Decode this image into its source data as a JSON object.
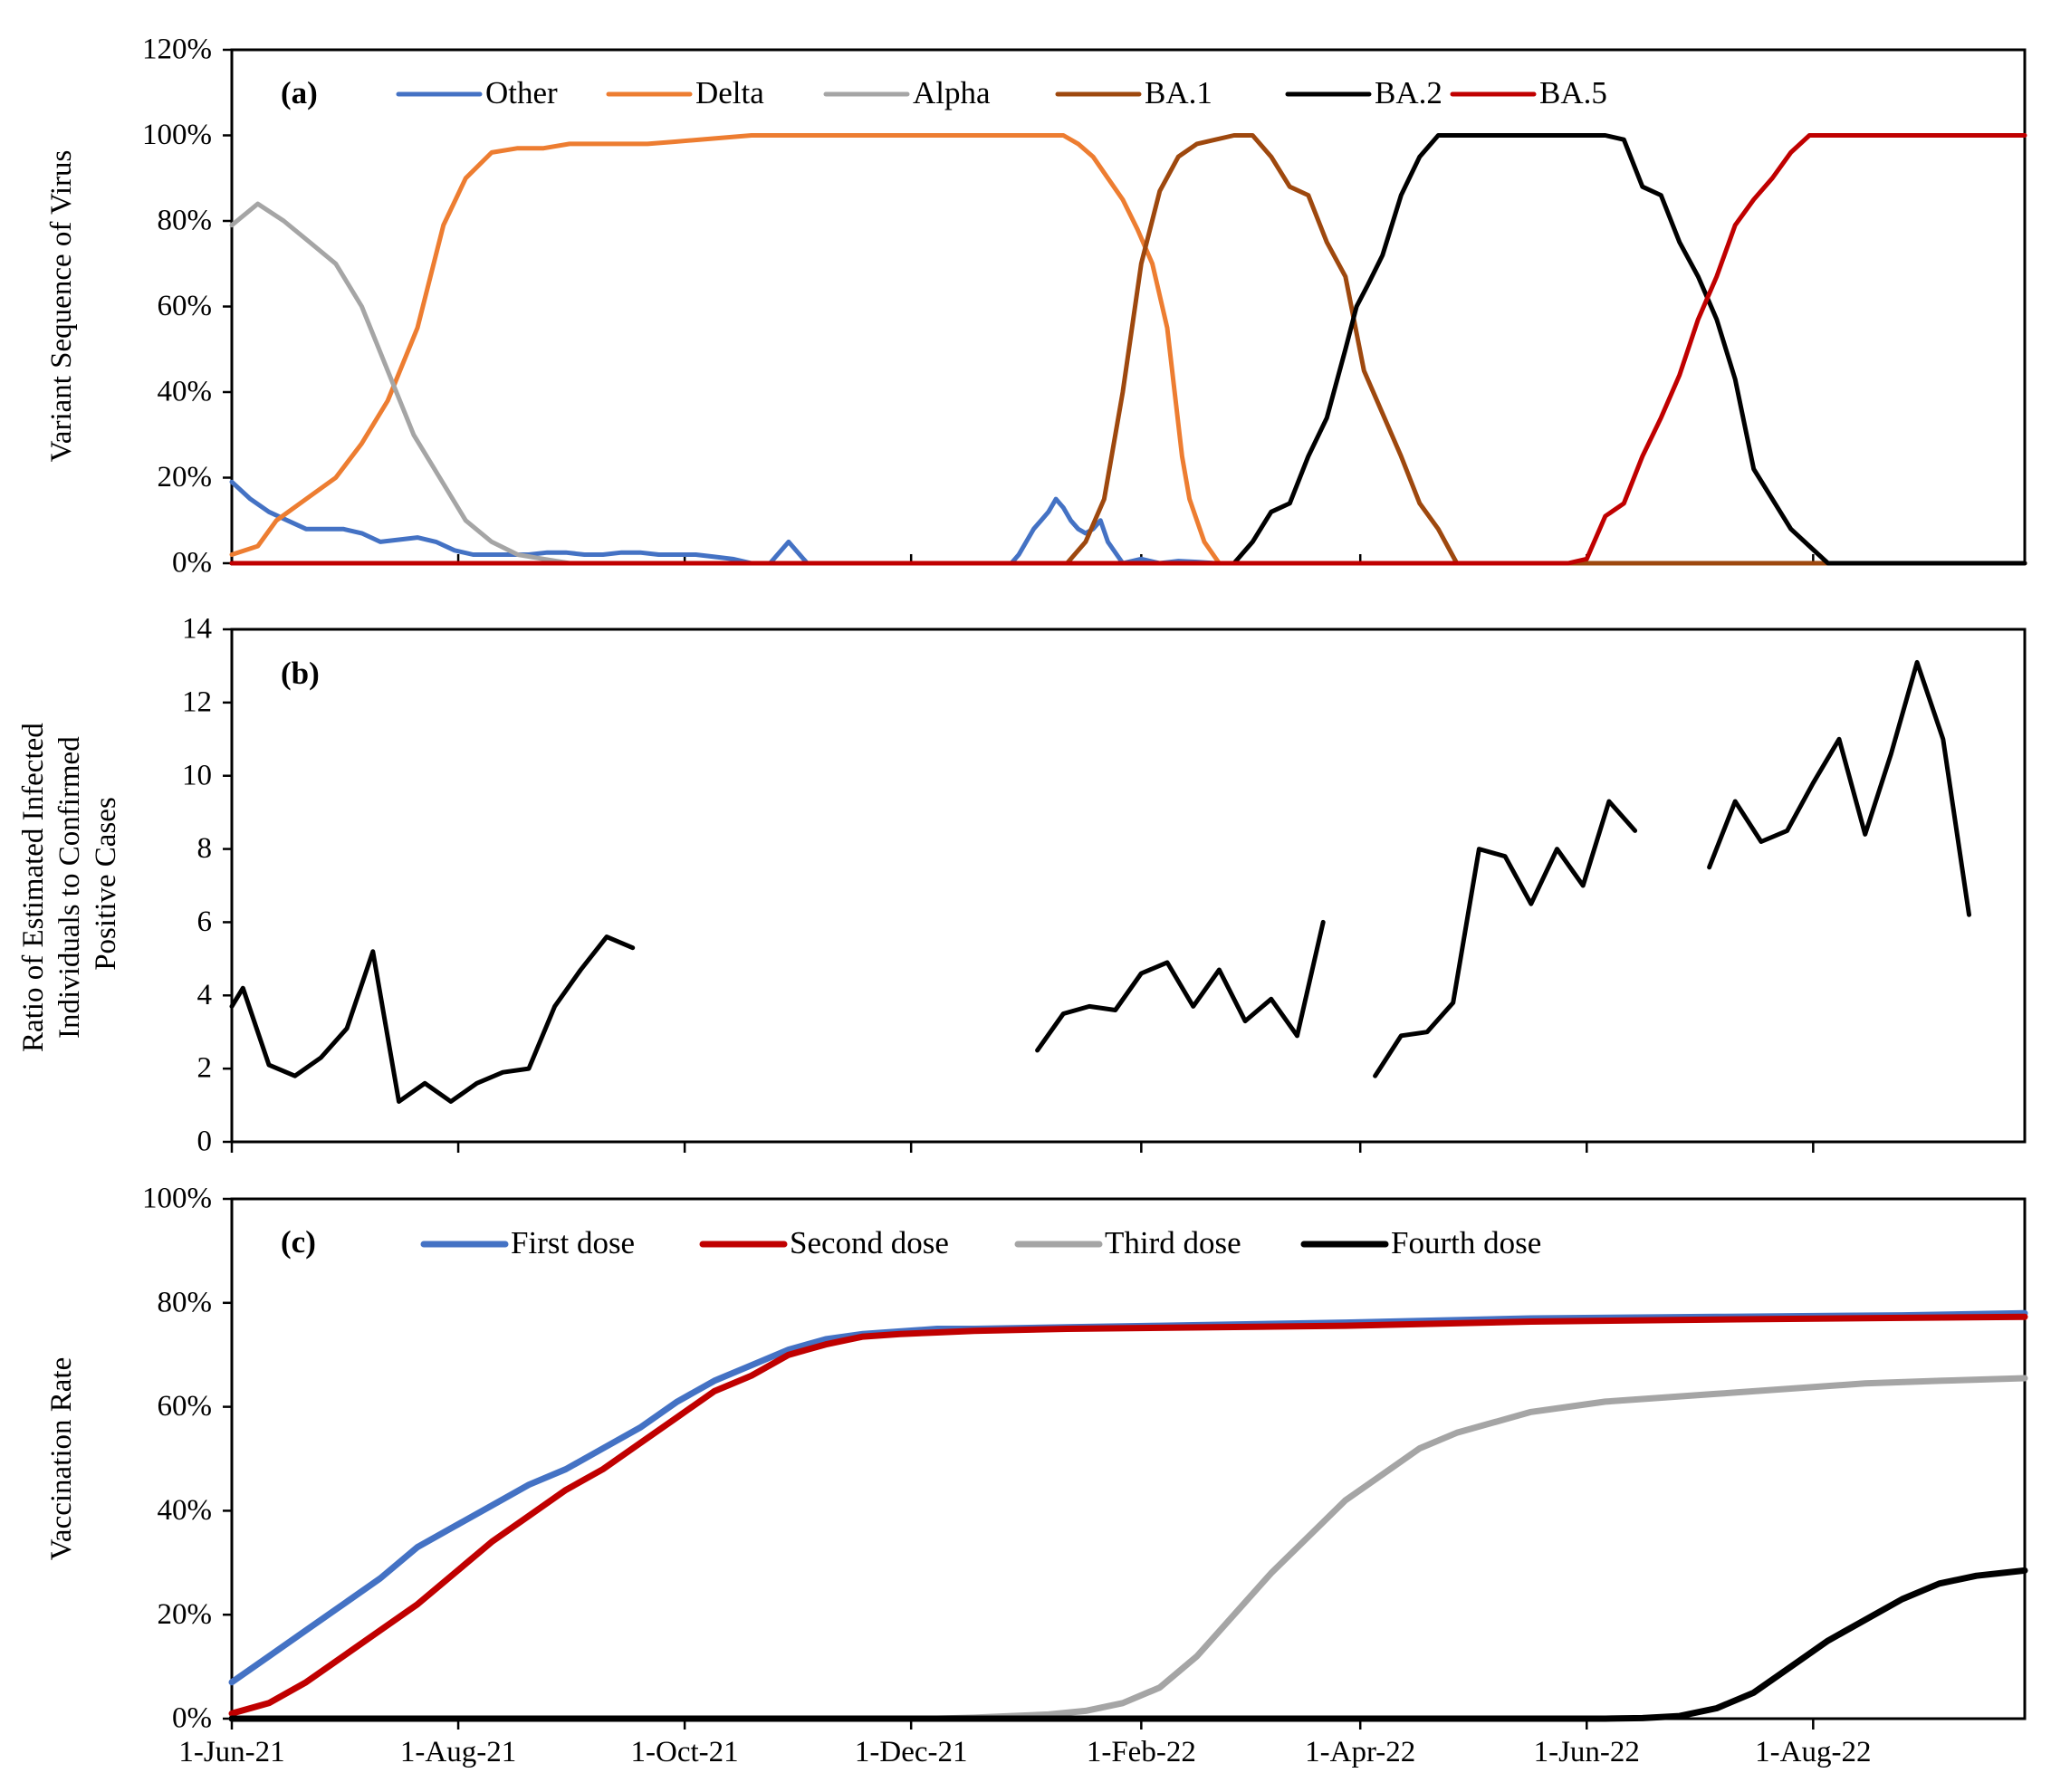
{
  "x_axis": {
    "labels": [
      "1-Jun-21",
      "1-Aug-21",
      "1-Oct-21",
      "1-Dec-21",
      "1-Feb-22",
      "1-Apr-22",
      "1-Jun-22",
      "1-Aug-22"
    ],
    "start_day": 0,
    "end_day": 483
  },
  "chart_data": [
    {
      "panel": "a",
      "type": "line",
      "panel_label": "(a)",
      "ylabel": "Variant Sequence of Virus",
      "ylim": [
        0,
        120
      ],
      "yticks": [
        "0%",
        "20%",
        "40%",
        "60%",
        "80%",
        "100%",
        "120%"
      ],
      "series": [
        {
          "name": "Other",
          "color": "#4472C4",
          "x": [
            0,
            5,
            10,
            15,
            20,
            25,
            30,
            35,
            40,
            45,
            50,
            55,
            60,
            65,
            70,
            75,
            80,
            85,
            90,
            95,
            100,
            105,
            110,
            115,
            120,
            125,
            130,
            135,
            140,
            145,
            150,
            155,
            160,
            165,
            170,
            175,
            180,
            185,
            190,
            195,
            200,
            205,
            210,
            212,
            214,
            216,
            218,
            220,
            222,
            224,
            226,
            228,
            230,
            232,
            234,
            236,
            240,
            245,
            250,
            255,
            260,
            265,
            270,
            483
          ],
          "y": [
            19,
            15,
            12,
            10,
            8,
            8,
            8,
            7,
            5,
            5.5,
            6,
            5,
            3,
            2,
            2,
            2,
            2,
            2.5,
            2.5,
            2,
            2,
            2.5,
            2.5,
            2,
            2,
            2,
            1.5,
            1,
            0,
            0,
            5,
            0,
            0,
            0,
            0,
            0,
            0,
            0,
            0,
            0,
            0,
            0,
            0,
            2,
            5,
            8,
            10,
            12,
            15,
            13,
            10,
            8,
            7,
            8,
            10,
            5,
            0,
            1,
            0,
            0.5,
            0.3,
            0,
            0,
            0
          ]
        },
        {
          "name": "Delta",
          "color": "#ED7D31",
          "x": [
            0,
            7,
            12,
            20,
            28,
            35,
            42,
            50,
            57,
            63,
            70,
            77,
            84,
            91,
            98,
            105,
            112,
            119,
            126,
            133,
            140,
            147,
            154,
            161,
            168,
            175,
            182,
            189,
            196,
            203,
            210,
            217,
            224,
            228,
            232,
            236,
            240,
            244,
            248,
            252,
            254,
            256,
            258,
            260,
            262,
            266,
            270,
            483
          ],
          "y": [
            2,
            4,
            10,
            15,
            20,
            28,
            38,
            55,
            79,
            90,
            96,
            97,
            97,
            98,
            98,
            98,
            98,
            98.5,
            99,
            99.5,
            100,
            100,
            100,
            100,
            100,
            100,
            100,
            100,
            100,
            100,
            100,
            100,
            100,
            98,
            95,
            90,
            85,
            78,
            70,
            55,
            40,
            25,
            15,
            10,
            5,
            0,
            0,
            0
          ]
        },
        {
          "name": "Alpha",
          "color": "#A5A5A5",
          "x": [
            0,
            7,
            14,
            21,
            28,
            35,
            42,
            49,
            56,
            63,
            70,
            77,
            84,
            91,
            98,
            105,
            112,
            483
          ],
          "y": [
            79,
            84,
            80,
            75,
            70,
            60,
            45,
            30,
            20,
            10,
            5,
            2,
            1,
            0,
            0,
            0,
            0,
            0
          ]
        },
        {
          "name": "BA.1",
          "color": "#9E480E",
          "x": [
            0,
            200,
            205,
            210,
            215,
            220,
            225,
            230,
            235,
            240,
            245,
            250,
            255,
            260,
            265,
            270,
            275,
            280,
            285,
            290,
            295,
            300,
            305,
            310,
            315,
            320,
            325,
            330,
            335,
            483
          ],
          "y": [
            0,
            0,
            0,
            0,
            0,
            0,
            0,
            5,
            15,
            40,
            70,
            87,
            95,
            98,
            99,
            100,
            100,
            95,
            88,
            86,
            75,
            67,
            45,
            35,
            25,
            14,
            8,
            0,
            0,
            0
          ]
        },
        {
          "name": "BA.2",
          "color": "#000000",
          "x": [
            0,
            250,
            255,
            260,
            265,
            270,
            275,
            280,
            285,
            290,
            295,
            300,
            303,
            306,
            310,
            315,
            320,
            325,
            330,
            335,
            340,
            345,
            350,
            355,
            360,
            365,
            370,
            375,
            380,
            385,
            390,
            395,
            400,
            405,
            410,
            415,
            420,
            425,
            430,
            435,
            440,
            445,
            450,
            483
          ],
          "y": [
            0,
            0,
            0,
            0,
            0,
            0,
            5,
            12,
            14,
            25,
            34,
            50,
            60,
            65,
            72,
            86,
            95,
            100,
            100,
            100,
            100,
            100,
            100,
            100,
            100,
            100,
            100,
            99,
            88,
            86,
            75,
            67,
            57,
            43,
            22,
            15,
            8,
            4,
            0,
            0,
            0,
            0,
            0,
            0
          ]
        },
        {
          "name": "BA.5",
          "color": "#C00000",
          "x": [
            0,
            355,
            360,
            365,
            370,
            375,
            380,
            385,
            390,
            395,
            400,
            405,
            410,
            415,
            420,
            425,
            430,
            435,
            440,
            445,
            450,
            483
          ],
          "y": [
            0,
            0,
            0,
            1,
            11,
            14,
            25,
            34,
            44,
            57,
            67,
            79,
            85,
            90,
            96,
            100,
            100,
            100,
            100,
            100,
            100,
            100
          ]
        }
      ]
    },
    {
      "panel": "b",
      "type": "line",
      "panel_label": "(b)",
      "ylabel": [
        "Ratio of Estimated Infected",
        "Individuals to Confirmed",
        "Positive Cases"
      ],
      "ylim": [
        0,
        14
      ],
      "yticks": [
        "0",
        "2",
        "4",
        "6",
        "8",
        "10",
        "12",
        "14"
      ],
      "series": [
        {
          "name": "segment-1",
          "color": "#000000",
          "x": [
            0,
            3,
            10,
            17,
            24,
            31,
            38,
            45,
            52,
            59,
            66,
            73,
            80,
            87,
            94,
            101,
            108,
            115,
            122
          ],
          "y": [
            3.7,
            4.2,
            2.1,
            1.8,
            2.3,
            3.1,
            5.2,
            1.1,
            1.6,
            1.1,
            1.6,
            1.9,
            2.0,
            3.7,
            4.7,
            5.6,
            5.3,
            null,
            null
          ]
        },
        {
          "name": "segment-2",
          "color": "#000000",
          "x": [
            217,
            224,
            231,
            238,
            245,
            252,
            259,
            266,
            273,
            280,
            287
          ],
          "y": [
            2.5,
            3.5,
            3.7,
            3.6,
            4.6,
            4.9,
            3.7,
            4.7,
            3.3,
            3.9,
            2.9
          ]
        },
        {
          "name": "segment-2b",
          "color": "#000000",
          "x": [
            287,
            294
          ],
          "y": [
            2.9,
            6.0
          ]
        },
        {
          "name": "segment-3",
          "color": "#000000",
          "x": [
            308,
            315,
            322,
            329,
            336,
            343,
            350,
            357,
            364,
            371,
            378
          ],
          "y": [
            1.8,
            2.9,
            3.0,
            3.8,
            8.0,
            7.8,
            6.5,
            8.0,
            7.0,
            9.3,
            8.5
          ]
        },
        {
          "name": "segment-4",
          "color": "#000000",
          "x": [
            398,
            405,
            412,
            419,
            426,
            433,
            440,
            447,
            454,
            461,
            468
          ],
          "y": [
            7.5,
            9.3,
            8.2,
            8.5,
            9.8,
            11.0,
            8.4,
            10.6,
            13.1,
            11.0,
            6.2
          ]
        }
      ]
    },
    {
      "panel": "c",
      "type": "line",
      "panel_label": "(c)",
      "ylabel": "Vaccination Rate",
      "ylim": [
        0,
        100
      ],
      "yticks": [
        "0%",
        "20%",
        "40%",
        "60%",
        "80%",
        "100%"
      ],
      "series": [
        {
          "name": "First dose",
          "color": "#4472C4",
          "x": [
            0,
            10,
            20,
            30,
            40,
            50,
            60,
            70,
            80,
            90,
            100,
            110,
            120,
            130,
            140,
            150,
            160,
            170,
            180,
            190,
            200,
            225,
            250,
            300,
            350,
            400,
            450,
            483
          ],
          "y": [
            7,
            12,
            17,
            22,
            27,
            33,
            37,
            41,
            45,
            48,
            52,
            56,
            61,
            65,
            68,
            71,
            73,
            74,
            74.5,
            75,
            75,
            75.3,
            75.6,
            76.2,
            77,
            77.3,
            77.6,
            78
          ]
        },
        {
          "name": "Second dose",
          "color": "#C00000",
          "x": [
            0,
            10,
            20,
            30,
            40,
            50,
            60,
            70,
            80,
            90,
            100,
            110,
            120,
            130,
            140,
            150,
            160,
            170,
            180,
            190,
            200,
            225,
            250,
            300,
            350,
            400,
            450,
            483
          ],
          "y": [
            1,
            3,
            7,
            12,
            17,
            22,
            28,
            34,
            39,
            44,
            48,
            53,
            58,
            63,
            66,
            70,
            72,
            73.5,
            74,
            74.3,
            74.6,
            75,
            75.2,
            75.6,
            76.4,
            76.8,
            77.1,
            77.3
          ]
        },
        {
          "name": "Third dose",
          "color": "#A5A5A5",
          "x": [
            0,
            190,
            200,
            210,
            220,
            230,
            240,
            250,
            260,
            270,
            280,
            290,
            300,
            310,
            320,
            330,
            340,
            350,
            360,
            370,
            380,
            390,
            400,
            420,
            440,
            460,
            483
          ],
          "y": [
            0,
            0,
            0.2,
            0.5,
            0.8,
            1.5,
            3,
            6,
            12,
            20,
            28,
            35,
            42,
            47,
            52,
            55,
            57,
            59,
            60,
            61,
            61.5,
            62,
            62.5,
            63.5,
            64.5,
            65,
            65.5
          ]
        },
        {
          "name": "Fourth dose",
          "color": "#000000",
          "x": [
            0,
            360,
            370,
            380,
            390,
            400,
            410,
            420,
            430,
            440,
            450,
            460,
            470,
            483
          ],
          "y": [
            0,
            0,
            0,
            0.1,
            0.5,
            2,
            5,
            10,
            15,
            19,
            23,
            26,
            27.5,
            28.5
          ]
        }
      ]
    }
  ]
}
